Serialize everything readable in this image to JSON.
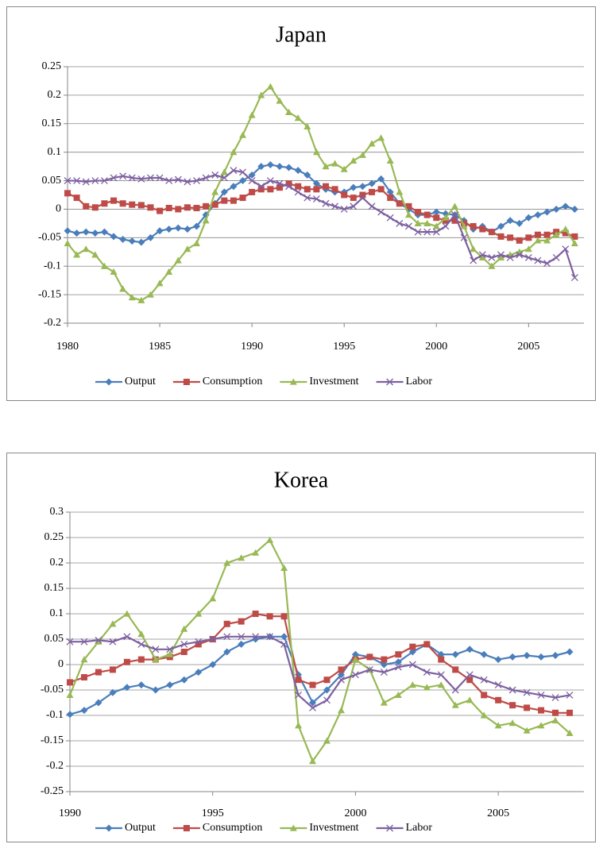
{
  "chart_data": [
    {
      "type": "line",
      "title": "Japan",
      "x": [
        1980,
        1980.5,
        1981,
        1981.5,
        1982,
        1982.5,
        1983,
        1983.5,
        1984,
        1984.5,
        1985,
        1985.5,
        1986,
        1986.5,
        1987,
        1987.5,
        1988,
        1988.5,
        1989,
        1989.5,
        1990,
        1990.5,
        1991,
        1991.5,
        1992,
        1992.5,
        1993,
        1993.5,
        1994,
        1994.5,
        1995,
        1995.5,
        1996,
        1996.5,
        1997,
        1997.5,
        1998,
        1998.5,
        1999,
        1999.5,
        2000,
        2000.5,
        2001,
        2001.5,
        2002,
        2002.5,
        2003,
        2003.5,
        2004,
        2004.5,
        2005,
        2005.5,
        2006,
        2006.5,
        2007,
        2007.5
      ],
      "xlim": [
        1980,
        2008
      ],
      "xticks": [
        1980,
        1985,
        1990,
        1995,
        2000,
        2005
      ],
      "ylim": [
        -0.2,
        0.25
      ],
      "yticks": [
        -0.2,
        -0.15,
        -0.1,
        -0.05,
        0,
        0.05,
        0.1,
        0.15,
        0.2,
        0.25
      ],
      "grid": true,
      "legend": "bottom",
      "series": [
        {
          "name": "Output",
          "color": "#4a7ebb",
          "marker": "diamond",
          "values": [
            -0.038,
            -0.042,
            -0.04,
            -0.042,
            -0.04,
            -0.048,
            -0.053,
            -0.056,
            -0.058,
            -0.05,
            -0.038,
            -0.035,
            -0.033,
            -0.035,
            -0.03,
            -0.01,
            0.01,
            0.03,
            0.04,
            0.05,
            0.06,
            0.075,
            0.078,
            0.075,
            0.073,
            0.068,
            0.06,
            0.045,
            0.035,
            0.03,
            0.03,
            0.038,
            0.04,
            0.045,
            0.053,
            0.03,
            0.01,
            0,
            -0.01,
            -0.01,
            -0.005,
            -0.008,
            -0.01,
            -0.02,
            -0.035,
            -0.03,
            -0.04,
            -0.03,
            -0.02,
            -0.025,
            -0.015,
            -0.01,
            -0.005,
            0,
            0.005,
            0
          ]
        },
        {
          "name": "Consumption",
          "color": "#be4b48",
          "marker": "square",
          "values": [
            0.028,
            0.02,
            0.005,
            0.003,
            0.01,
            0.015,
            0.01,
            0.008,
            0.007,
            0.003,
            -0.003,
            0.002,
            0,
            0.003,
            0.002,
            0.005,
            0.008,
            0.015,
            0.015,
            0.02,
            0.03,
            0.035,
            0.035,
            0.038,
            0.045,
            0.04,
            0.035,
            0.035,
            0.04,
            0.035,
            0.025,
            0.02,
            0.025,
            0.03,
            0.035,
            0.02,
            0.01,
            0.005,
            -0.005,
            -0.01,
            -0.015,
            -0.02,
            -0.02,
            -0.025,
            -0.03,
            -0.035,
            -0.04,
            -0.048,
            -0.05,
            -0.055,
            -0.05,
            -0.045,
            -0.045,
            -0.04,
            -0.042,
            -0.048
          ]
        },
        {
          "name": "Investment",
          "color": "#98b954",
          "marker": "triangle",
          "values": [
            -0.06,
            -0.08,
            -0.07,
            -0.08,
            -0.1,
            -0.11,
            -0.14,
            -0.155,
            -0.16,
            -0.15,
            -0.13,
            -0.11,
            -0.09,
            -0.07,
            -0.06,
            -0.02,
            0.03,
            0.065,
            0.1,
            0.13,
            0.165,
            0.2,
            0.215,
            0.19,
            0.17,
            0.16,
            0.145,
            0.1,
            0.075,
            0.08,
            0.07,
            0.085,
            0.095,
            0.115,
            0.125,
            0.085,
            0.03,
            -0.01,
            -0.025,
            -0.025,
            -0.03,
            -0.015,
            0.005,
            -0.03,
            -0.07,
            -0.085,
            -0.1,
            -0.085,
            -0.08,
            -0.075,
            -0.07,
            -0.055,
            -0.055,
            -0.045,
            -0.035,
            -0.06
          ]
        },
        {
          "name": "Labor",
          "color": "#7d60a0",
          "marker": "x",
          "values": [
            0.05,
            0.05,
            0.048,
            0.05,
            0.05,
            0.055,
            0.058,
            0.055,
            0.053,
            0.055,
            0.055,
            0.05,
            0.052,
            0.048,
            0.05,
            0.055,
            0.06,
            0.055,
            0.068,
            0.065,
            0.05,
            0.04,
            0.05,
            0.045,
            0.04,
            0.03,
            0.02,
            0.018,
            0.01,
            0.005,
            0,
            0.005,
            0.02,
            0.005,
            -0.005,
            -0.015,
            -0.025,
            -0.03,
            -0.04,
            -0.04,
            -0.04,
            -0.03,
            -0.01,
            -0.05,
            -0.09,
            -0.08,
            -0.085,
            -0.08,
            -0.085,
            -0.08,
            -0.085,
            -0.09,
            -0.095,
            -0.085,
            -0.07,
            -0.12
          ]
        }
      ]
    },
    {
      "type": "line",
      "title": "Korea",
      "x": [
        1990,
        1990.5,
        1991,
        1991.5,
        1992,
        1992.5,
        1993,
        1993.5,
        1994,
        1994.5,
        1995,
        1995.5,
        1996,
        1996.5,
        1997,
        1997.5,
        1998,
        1998.5,
        1999,
        1999.5,
        2000,
        2000.5,
        2001,
        2001.5,
        2002,
        2002.5,
        2003,
        2003.5,
        2004,
        2004.5,
        2005,
        2005.5,
        2006,
        2006.5,
        2007,
        2007.5
      ],
      "xlim": [
        1990,
        2008
      ],
      "xticks": [
        1990,
        1995,
        2000,
        2005
      ],
      "ylim": [
        -0.25,
        0.3
      ],
      "yticks": [
        -0.25,
        -0.2,
        -0.15,
        -0.1,
        -0.05,
        0,
        0.05,
        0.1,
        0.15,
        0.2,
        0.25,
        0.3
      ],
      "grid": true,
      "legend": "bottom",
      "series": [
        {
          "name": "Output",
          "color": "#4a7ebb",
          "marker": "diamond",
          "values": [
            -0.098,
            -0.09,
            -0.075,
            -0.055,
            -0.045,
            -0.04,
            -0.05,
            -0.04,
            -0.03,
            -0.015,
            0,
            0.025,
            0.04,
            0.05,
            0.055,
            0.055,
            -0.02,
            -0.075,
            -0.05,
            -0.02,
            0.02,
            0.015,
            0,
            0.005,
            0.025,
            0.04,
            0.02,
            0.02,
            0.03,
            0.02,
            0.01,
            0.015,
            0.018,
            0.015,
            0.018,
            0.025
          ]
        },
        {
          "name": "Consumption",
          "color": "#be4b48",
          "marker": "square",
          "values": [
            -0.035,
            -0.025,
            -0.015,
            -0.01,
            0.005,
            0.01,
            0.01,
            0.015,
            0.025,
            0.04,
            0.05,
            0.08,
            0.085,
            0.1,
            0.095,
            0.095,
            -0.03,
            -0.04,
            -0.03,
            -0.01,
            0.01,
            0.015,
            0.01,
            0.02,
            0.035,
            0.04,
            0.01,
            -0.01,
            -0.03,
            -0.06,
            -0.07,
            -0.08,
            -0.085,
            -0.09,
            -0.095,
            -0.095
          ]
        },
        {
          "name": "Investment",
          "color": "#98b954",
          "marker": "triangle",
          "values": [
            -0.06,
            0.01,
            0.045,
            0.08,
            0.1,
            0.06,
            0.01,
            0.02,
            0.07,
            0.1,
            0.13,
            0.2,
            0.21,
            0.22,
            0.245,
            0.19,
            -0.12,
            -0.19,
            -0.15,
            -0.09,
            0.01,
            -0.01,
            -0.075,
            -0.06,
            -0.04,
            -0.045,
            -0.04,
            -0.08,
            -0.07,
            -0.1,
            -0.12,
            -0.115,
            -0.13,
            -0.12,
            -0.11,
            -0.135
          ]
        },
        {
          "name": "Labor",
          "color": "#7d60a0",
          "marker": "x",
          "values": [
            0.045,
            0.045,
            0.048,
            0.045,
            0.055,
            0.04,
            0.03,
            0.03,
            0.04,
            0.045,
            0.05,
            0.055,
            0.055,
            0.055,
            0.055,
            0.04,
            -0.06,
            -0.085,
            -0.07,
            -0.03,
            -0.02,
            -0.01,
            -0.015,
            -0.005,
            0,
            -0.015,
            -0.02,
            -0.05,
            -0.02,
            -0.03,
            -0.04,
            -0.05,
            -0.055,
            -0.06,
            -0.065,
            -0.06
          ]
        }
      ]
    }
  ]
}
